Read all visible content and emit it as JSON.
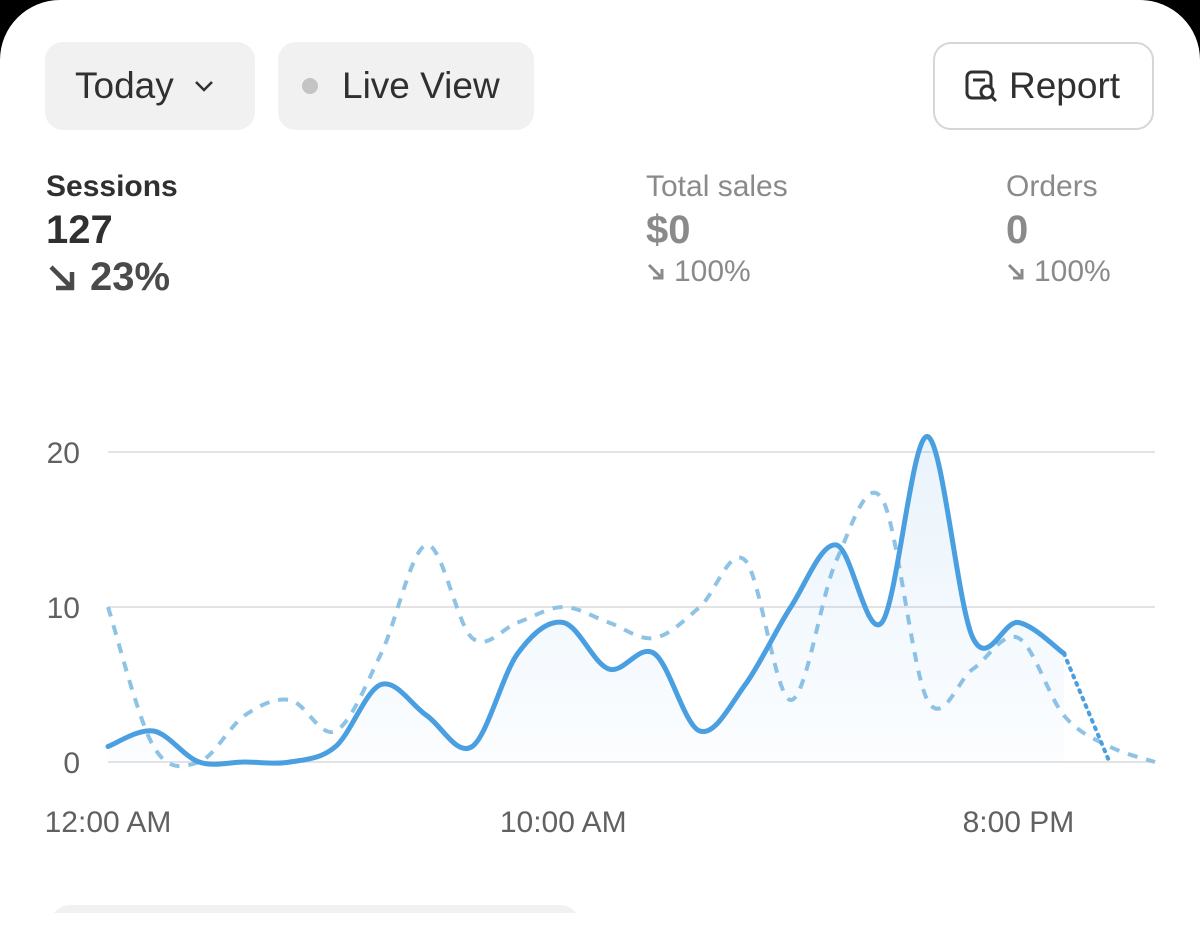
{
  "toolbar": {
    "date_button": "Today",
    "live_button": "Live View",
    "report_button": "Report"
  },
  "metrics": [
    {
      "label": "Sessions",
      "value": "127",
      "change": "23%"
    },
    {
      "label": "Total sales",
      "value": "$0",
      "change": "100%"
    },
    {
      "label": "Orders",
      "value": "0",
      "change": "100%"
    }
  ],
  "chart_data": {
    "type": "line",
    "categories": [
      "12:00 AM",
      null,
      null,
      null,
      null,
      null,
      null,
      null,
      null,
      null,
      "10:00 AM",
      null,
      null,
      null,
      null,
      null,
      null,
      null,
      null,
      null,
      "8:00 PM",
      null,
      null,
      null
    ],
    "series": [
      {
        "color": "#4a9fe0",
        "style": "solid",
        "values": [
          1,
          2,
          0,
          0,
          0,
          1,
          5,
          3,
          1,
          7,
          9,
          6,
          7,
          2,
          5,
          10,
          14,
          9,
          21,
          8,
          9,
          7,
          0,
          null
        ]
      },
      {
        "color": "#8ec3e6",
        "style": "dashed",
        "values": [
          10,
          1,
          0,
          3,
          4,
          2,
          7,
          14,
          8,
          9,
          10,
          9,
          8,
          10,
          13,
          4,
          13,
          17,
          4,
          6,
          8,
          3,
          1,
          0
        ]
      }
    ],
    "ylim": [
      0,
      20
    ],
    "yticks": [
      0,
      10,
      20
    ],
    "grid": true
  }
}
